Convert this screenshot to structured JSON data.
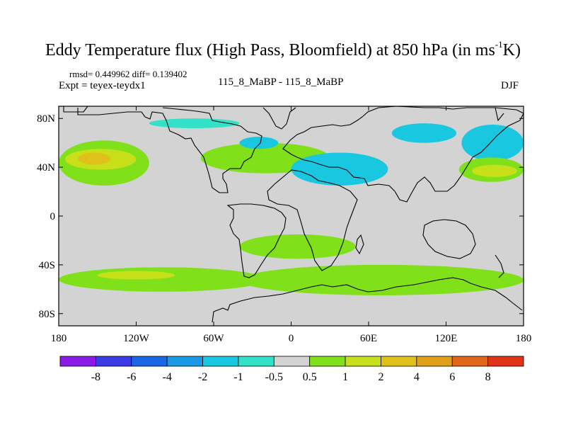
{
  "title": {
    "main": "Eddy Temperature flux (High Pass, Bloomfield) at 850 hPa (in ms",
    "sup": "-1",
    "end": "K)"
  },
  "stats": "rmsd= 0.449962 diff= 0.139402",
  "expt": "Expt = teyex-teydx1",
  "center_label": "115_8_MaBP - 115_8_MaBP",
  "season": "DJF",
  "colors": {
    "background_field": "#d3d3d3",
    "coast": "#000000"
  },
  "chart_data": {
    "type": "heatmap",
    "title": "Eddy Temperature flux (High Pass, Bloomfield) at 850 hPa (in ms-1K)",
    "x_ticks": [
      "180",
      "120W",
      "60W",
      "0",
      "60E",
      "120E",
      "180"
    ],
    "x_tick_values": [
      -180,
      -120,
      -60,
      0,
      60,
      120,
      180
    ],
    "y_ticks": [
      "80N",
      "40N",
      "0",
      "40S",
      "80S"
    ],
    "y_tick_values": [
      80,
      40,
      0,
      -40,
      -80
    ],
    "xlim": [
      -180,
      180
    ],
    "ylim": [
      -90,
      90
    ],
    "colorbar": {
      "levels": [
        "-8",
        "-6",
        "-4",
        "-2",
        "-1",
        "-0.5",
        "0.5",
        "1",
        "2",
        "4",
        "6",
        "8"
      ],
      "colors": [
        "#8b1ae6",
        "#3a3ae6",
        "#1a66e6",
        "#1a99e6",
        "#1ac7e0",
        "#33e0c8",
        "#d3d3d3",
        "#80e01a",
        "#c8e01a",
        "#e0c01a",
        "#e0a01a",
        "#e0661a",
        "#e0331a"
      ]
    },
    "regions": [
      {
        "level": "1",
        "color": "#80e01a",
        "lon": [
          -180,
          -110
        ],
        "lat": [
          25,
          62
        ]
      },
      {
        "level": "2",
        "color": "#c8e01a",
        "lon": [
          -175,
          -120
        ],
        "lat": [
          38,
          55
        ]
      },
      {
        "level": "4",
        "color": "#e0c01a",
        "lon": [
          -165,
          -140
        ],
        "lat": [
          42,
          52
        ]
      },
      {
        "level": "1",
        "color": "#80e01a",
        "lon": [
          -70,
          30
        ],
        "lat": [
          35,
          60
        ]
      },
      {
        "level": "-1",
        "color": "#1ac7e0",
        "lon": [
          0,
          75
        ],
        "lat": [
          25,
          52
        ]
      },
      {
        "level": "-1",
        "color": "#1ac7e0",
        "lon": [
          -40,
          -10
        ],
        "lat": [
          55,
          65
        ]
      },
      {
        "level": "-1",
        "color": "#1ac7e0",
        "lon": [
          78,
          128
        ],
        "lat": [
          60,
          76
        ]
      },
      {
        "level": "-0.5",
        "color": "#33e0c8",
        "lon": [
          -110,
          -40
        ],
        "lat": [
          72,
          80
        ]
      },
      {
        "level": "-1",
        "color": "#1ac7e0",
        "lon": [
          132,
          180
        ],
        "lat": [
          45,
          75
        ]
      },
      {
        "level": "1",
        "color": "#80e01a",
        "lon": [
          130,
          180
        ],
        "lat": [
          28,
          48
        ]
      },
      {
        "level": "2",
        "color": "#c8e01a",
        "lon": [
          140,
          175
        ],
        "lat": [
          32,
          42
        ]
      },
      {
        "level": "1",
        "color": "#80e01a",
        "lon": [
          -180,
          -20
        ],
        "lat": [
          -62,
          -42
        ]
      },
      {
        "level": "1",
        "color": "#80e01a",
        "lon": [
          -40,
          180
        ],
        "lat": [
          -65,
          -40
        ]
      },
      {
        "level": "1",
        "color": "#80e01a",
        "lon": [
          -40,
          50
        ],
        "lat": [
          -35,
          -15
        ]
      },
      {
        "level": "2",
        "color": "#c8e01a",
        "lon": [
          -150,
          -90
        ],
        "lat": [
          -52,
          -45
        ]
      }
    ]
  }
}
